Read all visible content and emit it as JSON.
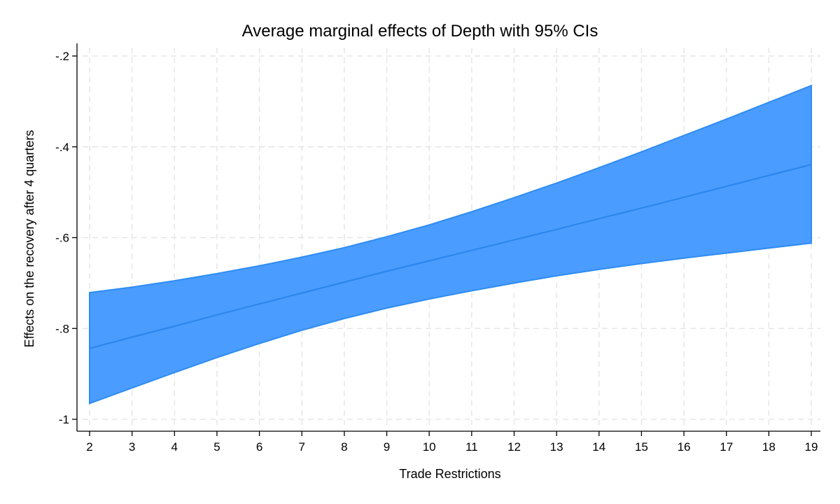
{
  "chart_data": {
    "type": "area",
    "title": "Average marginal effects of Depth with 95% CIs",
    "xlabel": "Trade Restrictions",
    "ylabel": "Effects on the recovery after 4 quarters",
    "x": [
      2,
      3,
      4,
      5,
      6,
      7,
      8,
      9,
      10,
      11,
      12,
      13,
      14,
      15,
      16,
      17,
      18,
      19
    ],
    "xticks": [
      "2",
      "3",
      "4",
      "5",
      "6",
      "7",
      "8",
      "9",
      "10",
      "11",
      "12",
      "13",
      "14",
      "15",
      "16",
      "17",
      "18",
      "19"
    ],
    "yticks": [
      -1,
      -0.8,
      -0.6,
      -0.4,
      -0.2
    ],
    "ytick_labels": [
      "-1",
      "-.8",
      "-.6",
      "-.4",
      "-.2"
    ],
    "xlim": [
      2,
      19
    ],
    "ylim": [
      -1,
      -0.2
    ],
    "grid": true,
    "series": [
      {
        "role": "estimate",
        "values": [
          -0.844,
          -0.819,
          -0.795,
          -0.77,
          -0.746,
          -0.722,
          -0.698,
          -0.674,
          -0.651,
          -0.628,
          -0.605,
          -0.582,
          -0.558,
          -0.535,
          -0.511,
          -0.487,
          -0.463,
          -0.439
        ]
      },
      {
        "role": "upper_ci",
        "values": [
          -0.721,
          -0.709,
          -0.695,
          -0.679,
          -0.662,
          -0.643,
          -0.622,
          -0.598,
          -0.572,
          -0.543,
          -0.512,
          -0.48,
          -0.446,
          -0.411,
          -0.375,
          -0.339,
          -0.302,
          -0.265
        ]
      },
      {
        "role": "lower_ci",
        "values": [
          -0.965,
          -0.931,
          -0.897,
          -0.864,
          -0.833,
          -0.804,
          -0.778,
          -0.755,
          -0.735,
          -0.717,
          -0.7,
          -0.684,
          -0.67,
          -0.657,
          -0.645,
          -0.634,
          -0.623,
          -0.612
        ]
      }
    ],
    "colors": {
      "band_fill": "#4a9cff",
      "band_edge": "#2e8cf2",
      "line": "#2a85ea",
      "grid": "#e6e6e6",
      "axis": "#000000"
    }
  }
}
